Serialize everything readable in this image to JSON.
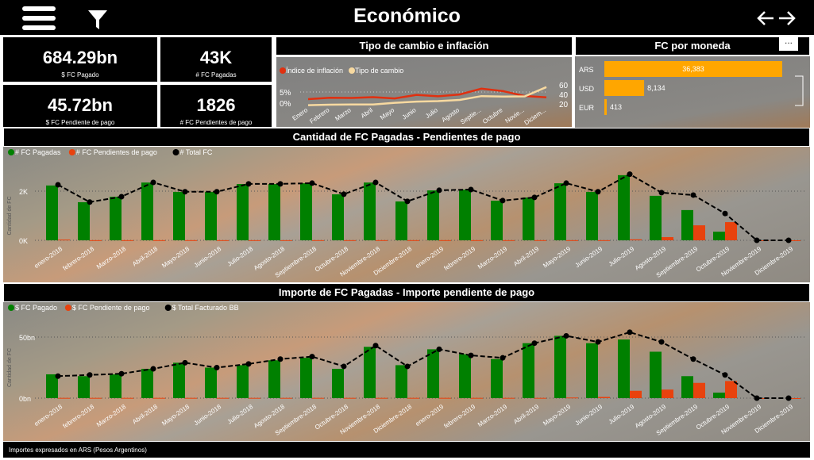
{
  "header": {
    "title": "Económico",
    "menu_icon": "hamburger-icon",
    "filter_icon": "filter-icon",
    "back_icon": "arrow-left-icon",
    "forward_icon": "arrow-right-icon"
  },
  "kpis": [
    {
      "value": "684.29bn",
      "label": "$ FC Pagado"
    },
    {
      "value": "43K",
      "label": "# FC Pagadas"
    },
    {
      "value": "45.72bn",
      "label": "$ FC Pendiente de pago"
    },
    {
      "value": "1826",
      "label": "# FC Pendientes de pago"
    }
  ],
  "footer": "Importes expresados en ARS (Pesos Argentinos)",
  "more_options": "...",
  "colors": {
    "green": "#008000",
    "red": "#e8420e",
    "orange": "#ffa600",
    "cream": "#f7d9a0",
    "inflation": "#e03010"
  },
  "chart_data": [
    {
      "type": "line",
      "title": "Tipo de cambio e inflación",
      "categories": [
        "Enero",
        "Febrero",
        "Marzo",
        "Abril",
        "Mayo",
        "Junio",
        "Julio",
        "Agosto",
        "Septie...",
        "Octubre",
        "Novie...",
        "Diciem..."
      ],
      "left_ticks": [
        "0%",
        "5%"
      ],
      "right_ticks": [
        "20",
        "40",
        "60"
      ],
      "series": [
        {
          "name": "Índice de inflación",
          "axis": "left",
          "unit": "%",
          "values": [
            1.8,
            2.4,
            2.3,
            2.7,
            2.1,
            3.7,
            3.1,
            3.9,
            6.5,
            5.4,
            3.2,
            2.6
          ]
        },
        {
          "name": "Tipo de cambio",
          "axis": "right",
          "values": [
            19,
            20,
            20.5,
            20.5,
            24,
            26.5,
            27.5,
            30,
            38,
            37,
            37.5,
            57
          ]
        }
      ]
    },
    {
      "type": "bar",
      "title": "FC por moneda",
      "categories": [
        "ARS",
        "USD",
        "EUR"
      ],
      "values": [
        36383,
        8134,
        413
      ],
      "labels": [
        "36,383",
        "8,134",
        "413"
      ]
    },
    {
      "type": "bar",
      "title": "Cantidad de FC Pagadas - Pendientes de pago",
      "ylabel": "Cantidad de FC",
      "ticks": [
        "0K",
        "2K"
      ],
      "tick_values": [
        0,
        2000
      ],
      "categories": [
        "enero-2018",
        "febrero-2018",
        "Marzo-2018",
        "Abril-2018",
        "Mayo-2018",
        "Junio-2018",
        "Julio-2018",
        "Agosto-2018",
        "Septiembre-2018",
        "Octubre-2018",
        "Noviembre-2018",
        "Diciembre-2018",
        "enero-2019",
        "febrero-2019",
        "Marzo-2019",
        "Abril-2019",
        "Mayo-2019",
        "Junio-2019",
        "Julio-2019",
        "Agosto-2019",
        "Septiembre-2019",
        "Octubre-2019",
        "Noviembre-2019",
        "Diciembre-2019"
      ],
      "series": [
        {
          "name": "# FC Pagadas",
          "kind": "bar",
          "values": [
            2230,
            1550,
            1770,
            2350,
            1970,
            1970,
            2290,
            2290,
            2320,
            1870,
            2350,
            1580,
            2030,
            2060,
            1610,
            1740,
            2320,
            1970,
            2650,
            1810,
            1230,
            350,
            0,
            0
          ]
        },
        {
          "name": "# FC Pendientes de pago",
          "kind": "bar",
          "values": [
            30,
            5,
            5,
            5,
            5,
            5,
            5,
            5,
            5,
            5,
            5,
            5,
            5,
            5,
            5,
            5,
            5,
            5,
            40,
            130,
            610,
            740,
            0,
            0
          ]
        },
        {
          "name": "# Total FC",
          "kind": "line",
          "values": [
            2260,
            1555,
            1775,
            2355,
            1975,
            1975,
            2295,
            2295,
            2325,
            1875,
            2355,
            1585,
            2035,
            2065,
            1615,
            1745,
            2325,
            1975,
            2690,
            1940,
            1840,
            1090,
            0,
            0
          ]
        }
      ]
    },
    {
      "type": "bar",
      "title": "Importe de FC Pagadas - Importe pendiente de pago",
      "ylabel": "Cantidad de FC",
      "ticks": [
        "0bn",
        "50bn"
      ],
      "tick_values": [
        0,
        50
      ],
      "categories": [
        "enero-2018",
        "febrero-2018",
        "Marzo-2018",
        "Abril-2018",
        "Mayo-2018",
        "Junio-2018",
        "Julio-2018",
        "Agosto-2018",
        "Septiembre-2018",
        "Octubre-2018",
        "Noviembre-2018",
        "Diciembre-2018",
        "enero-2019",
        "febrero-2019",
        "Marzo-2019",
        "Abril-2019",
        "Mayo-2019",
        "Junio-2019",
        "Julio-2019",
        "Agosto-2019",
        "Septiembre-2019",
        "Octubre-2019",
        "Noviembre-2019",
        "Diciembre-2019"
      ],
      "series": [
        {
          "name": "$ FC Pagado",
          "kind": "bar",
          "values": [
            19.5,
            18,
            19.5,
            24,
            29,
            25,
            27,
            31,
            33,
            24,
            42,
            27,
            40,
            36,
            32,
            45,
            51,
            45,
            48,
            38,
            18,
            4.5,
            0,
            0
          ]
        },
        {
          "name": "$ FC Pendiente de pago",
          "kind": "bar",
          "values": [
            0.2,
            0.2,
            0.2,
            0.2,
            0.2,
            0.2,
            0.2,
            0.2,
            0.2,
            0.2,
            0.2,
            0.2,
            0.2,
            0.2,
            0.2,
            0.2,
            0.5,
            1,
            6,
            7,
            12.5,
            14,
            0,
            0
          ]
        },
        {
          "name": "$ Total Facturado BB",
          "kind": "line",
          "values": [
            18,
            19,
            20,
            24,
            29,
            25,
            28,
            32,
            34,
            26,
            43,
            26,
            40,
            35,
            33,
            45,
            51,
            46,
            54,
            46,
            32,
            19,
            0,
            0
          ]
        }
      ]
    }
  ]
}
